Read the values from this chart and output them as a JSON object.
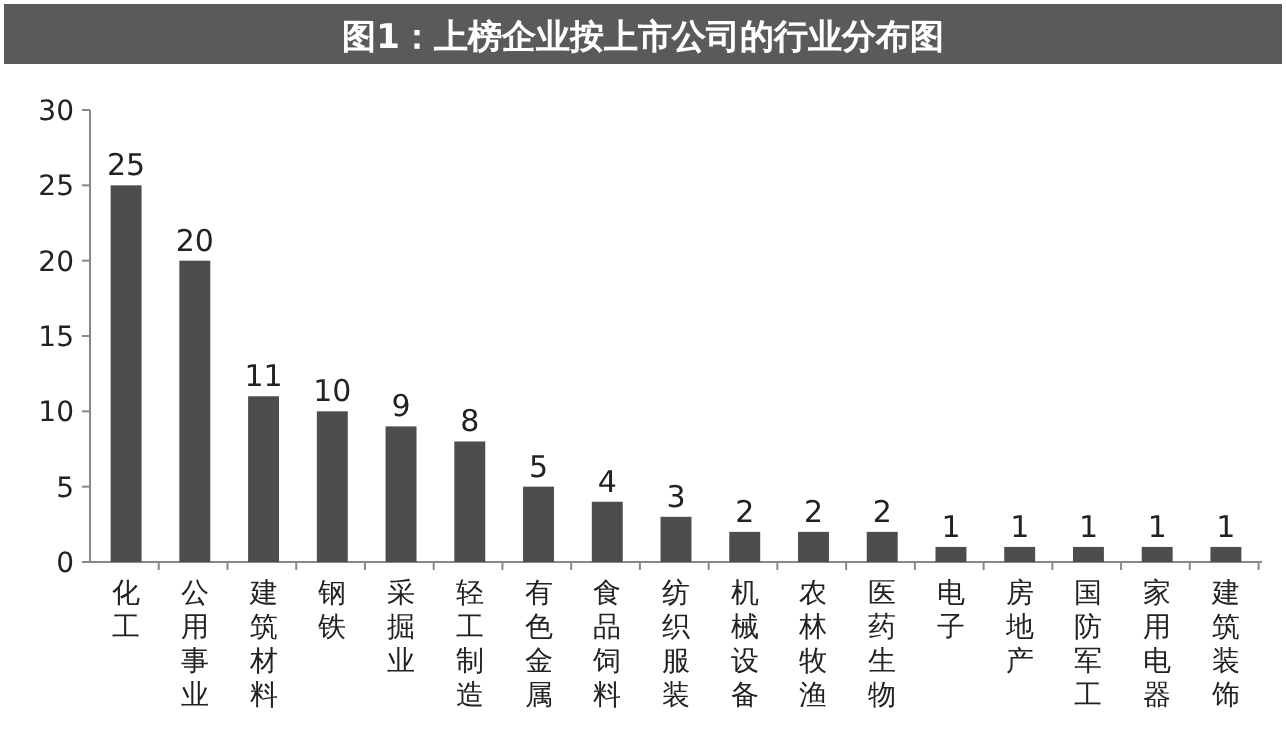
{
  "chart_data": {
    "type": "bar",
    "title": "图1：上榜企业按上市公司的行业分布图",
    "categories": [
      "化工",
      "公用事业",
      "建筑材料",
      "钢铁",
      "采掘业",
      "轻工制造",
      "有色金属",
      "食品饲料",
      "纺织服装",
      "机械设备",
      "农林牧渔",
      "医药生物",
      "电子",
      "房地产",
      "国防军工",
      "家用电器",
      "建筑装饰"
    ],
    "values": [
      25,
      20,
      11,
      10,
      9,
      8,
      5,
      4,
      3,
      2,
      2,
      2,
      1,
      1,
      1,
      1,
      1
    ],
    "color": "#4d4d4d",
    "ylim": [
      0,
      30
    ],
    "yticks": [
      0,
      5,
      10,
      15,
      20,
      25,
      30
    ],
    "grid": false,
    "data_labels": true
  }
}
